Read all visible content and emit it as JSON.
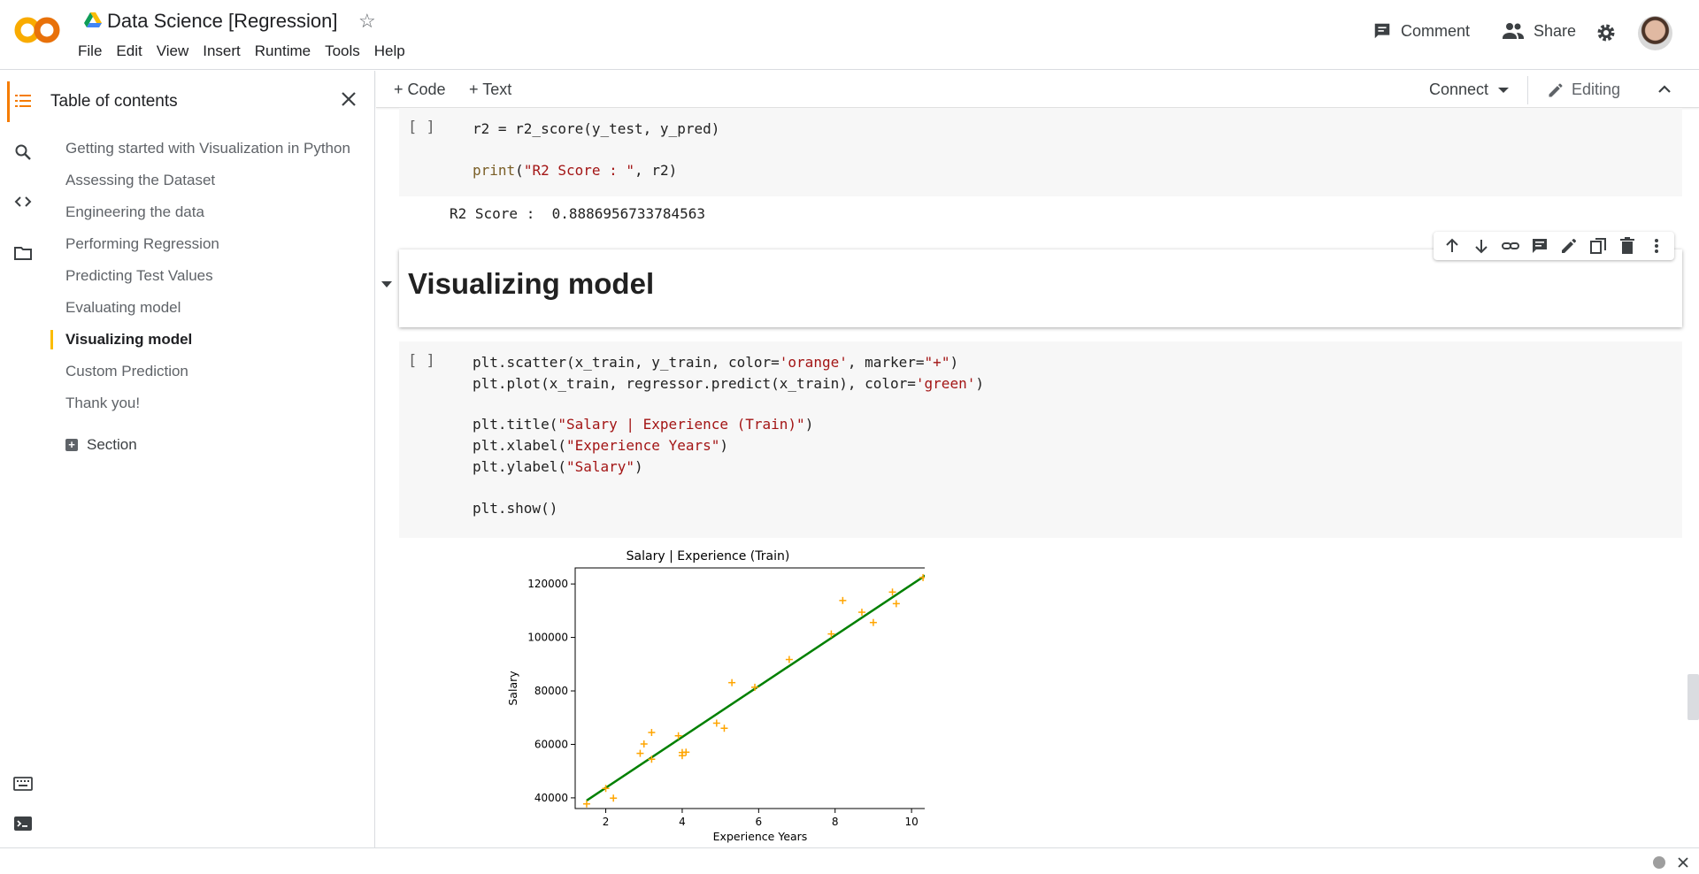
{
  "header": {
    "title": "Data Science [Regression]",
    "menu": [
      "File",
      "Edit",
      "View",
      "Insert",
      "Runtime",
      "Tools",
      "Help"
    ],
    "comment_label": "Comment",
    "share_label": "Share"
  },
  "toc": {
    "title": "Table of contents",
    "items": [
      "Getting started with Visualization in Python",
      "Assessing the Dataset",
      "Engineering the data",
      "Performing Regression",
      "Predicting Test Values",
      "Evaluating model",
      "Visualizing model",
      "Custom Prediction",
      "Thank you!"
    ],
    "active_item": "Visualizing model",
    "section_label": "Section"
  },
  "toolbar": {
    "code_label": "+ Code",
    "text_label": "+ Text",
    "connect_label": "Connect",
    "editing_label": "Editing"
  },
  "cells": {
    "r2_cell": {
      "bracket": "[ ]",
      "line1": "r2 = r2_score(y_test, y_pred)",
      "line2_fn": "print",
      "line2_str": "\"R2 Score : \"",
      "line2_rest": ", r2)",
      "output": "R2 Score :  0.8886956733784563"
    },
    "heading": "Visualizing model",
    "plot_cell": {
      "bracket": "[ ]",
      "l1a": "plt.scatter(x_train, y_train, color=",
      "l1b": "'orange'",
      "l1c": ", marker=",
      "l1d": "\"+\"",
      "l1e": ")",
      "l2a": "plt.plot(x_train, regressor.predict(x_train), color=",
      "l2b": "'green'",
      "l2c": ")",
      "l3a": "plt.title(",
      "l3b": "\"Salary | Experience (Train)\"",
      "l3c": ")",
      "l4a": "plt.xlabel(",
      "l4b": "\"Experience Years\"",
      "l4c": ")",
      "l5a": "plt.ylabel(",
      "l5b": "\"Salary\"",
      "l5c": ")",
      "l6": "plt.show()"
    }
  },
  "colors": {
    "accent_orange": "#f57c00",
    "toc_highlight": "#fbbc04",
    "scatter": "#ffa500",
    "line": "#008000"
  },
  "chart_data": {
    "type": "scatter",
    "title": "Salary | Experience (Train)",
    "xlabel": "Experience Years",
    "ylabel": "Salary",
    "xlim": [
      1.2,
      10.9
    ],
    "ylim": [
      36000,
      126000
    ],
    "xticks": [
      2,
      4,
      6,
      8,
      10
    ],
    "yticks": [
      40000,
      60000,
      80000,
      100000,
      120000
    ],
    "series": [
      {
        "kind": "scatter",
        "marker": "+",
        "color": "orange",
        "x": [
          1.5,
          2.0,
          2.2,
          2.9,
          3.0,
          3.2,
          3.2,
          3.9,
          4.0,
          4.0,
          4.1,
          4.9,
          5.1,
          5.3,
          5.9,
          6.8,
          7.9,
          8.2,
          8.7,
          9.0,
          9.5,
          9.6,
          10.3,
          10.5
        ],
        "y": [
          37731,
          43525,
          39891,
          56642,
          60150,
          54445,
          64445,
          63218,
          55794,
          56957,
          57081,
          67938,
          66029,
          83088,
          81363,
          91738,
          101302,
          113812,
          109431,
          105582,
          116969,
          112635,
          122391,
          121872
        ]
      },
      {
        "kind": "line",
        "color": "green",
        "x": [
          1.5,
          10.5
        ],
        "y": [
          39000,
          124500
        ]
      }
    ]
  }
}
